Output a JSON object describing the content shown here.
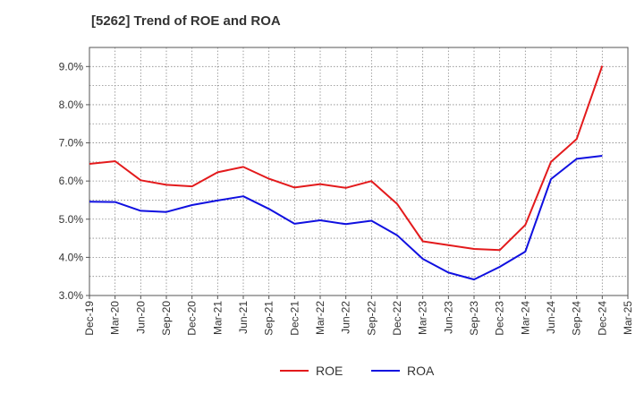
{
  "chart_data": {
    "type": "line",
    "title": "[5262]  Trend of ROE and ROA",
    "xlabel": "",
    "ylabel": "",
    "categories": [
      "Dec-19",
      "Mar-20",
      "Jun-20",
      "Sep-20",
      "Dec-20",
      "Mar-21",
      "Jun-21",
      "Sep-21",
      "Dec-21",
      "Mar-22",
      "Jun-22",
      "Sep-22",
      "Dec-22",
      "Mar-23",
      "Jun-23",
      "Sep-23",
      "Dec-23",
      "Mar-24",
      "Jun-24",
      "Sep-24",
      "Dec-24",
      "Mar-25"
    ],
    "ylim": [
      3.0,
      9.5
    ],
    "yticks": [
      3.0,
      4.0,
      5.0,
      6.0,
      7.0,
      8.0,
      9.0
    ],
    "ytick_labels": [
      "3.0%",
      "4.0%",
      "5.0%",
      "6.0%",
      "7.0%",
      "8.0%",
      "9.0%"
    ],
    "grid": true,
    "legend_position": "bottom-center",
    "series": [
      {
        "name": "ROE",
        "color": "#e31a1c",
        "values": [
          6.45,
          6.52,
          6.02,
          5.9,
          5.86,
          6.23,
          6.37,
          6.06,
          5.83,
          5.92,
          5.82,
          6.0,
          5.4,
          4.42,
          4.32,
          4.22,
          4.19,
          4.85,
          6.5,
          7.1,
          9.02,
          null
        ]
      },
      {
        "name": "ROA",
        "color": "#1010e0",
        "values": [
          5.46,
          5.45,
          5.22,
          5.19,
          5.37,
          5.49,
          5.6,
          5.27,
          4.88,
          4.97,
          4.87,
          4.96,
          4.58,
          3.96,
          3.6,
          3.42,
          3.75,
          4.15,
          6.05,
          6.58,
          6.66,
          null
        ]
      }
    ]
  }
}
